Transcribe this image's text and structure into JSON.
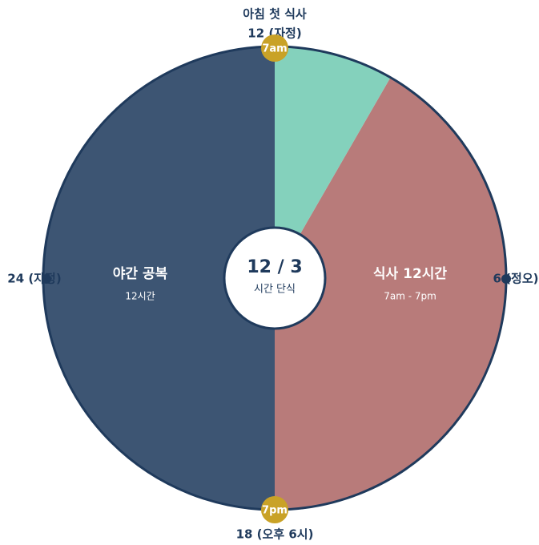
{
  "header": {
    "title": "아침 첫 식사"
  },
  "clock_labels": {
    "top": "12 (자정)",
    "right": "6 (정오)",
    "bottom": "18 (오후 6시)",
    "left": "24 (자정)"
  },
  "markers": {
    "start": "7am",
    "end": "7pm"
  },
  "segments": [
    {
      "label": "야간 공복",
      "detail": "12시간"
    },
    {
      "label": "식사 12시간",
      "detail": "7am - 7pm"
    }
  ],
  "center": {
    "title": "12 / 3",
    "subtitle": "시간 단식"
  }
}
